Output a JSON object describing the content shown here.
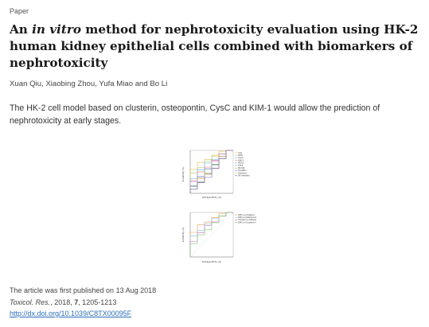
{
  "article": {
    "type": "Paper",
    "title_part1": "An ",
    "title_italic": "in vitro",
    "title_part2": " method for nephrotoxicity evaluation using HK-2 human kidney epithelial cells combined with biomarkers of nephrotoxicity",
    "authors": "Xuan Qiu, Xiaobing Zhou, Yufa Miao and Bo Li",
    "summary": "The HK-2 cell model based on clusterin, osteopontin, CysC and KIM-1 would allow the prediction of nephrotoxicity at early stages."
  },
  "publication": {
    "first_published_text": "The article was first published on 13 Aug 2018",
    "journal": "Toxicol. Res.",
    "year": "2018",
    "volume": "7",
    "pages": "1205-1213",
    "doi_url": "http://dx.doi.org/10.1039/C8TX00095F"
  },
  "toc_graphic": {
    "top_chart": {
      "ylabel": "Sensitivity (%)",
      "xlabel": "100-Specificity (%)",
      "legend": [
        "CLU",
        "OPN",
        "CysC",
        "KIM-1",
        "NGAL",
        "TFF3",
        "β2-MG",
        "Cystatin",
        "Clusterin",
        "All markers"
      ],
      "colors": [
        "#e8c048",
        "#a7d27a",
        "#69b5e6",
        "#f08080",
        "#b48ce0",
        "#5fb89a",
        "#e8a060",
        "#7aa0d8",
        "#c0c060",
        "#7a5fb8"
      ]
    },
    "bottom_chart": {
      "ylabel": "Sensitivity (%)",
      "xlabel": "100-Specificity (%)",
      "legend": [
        "KIM-1+Clusterin",
        "KIM-1+Osteopontin",
        "Clusterin+Osteopontin",
        "KIM-1+Clusterin+Osteopontin"
      ],
      "colors": [
        "#f0a040",
        "#8bc0e8",
        "#d070c8",
        "#7ad070"
      ]
    }
  }
}
